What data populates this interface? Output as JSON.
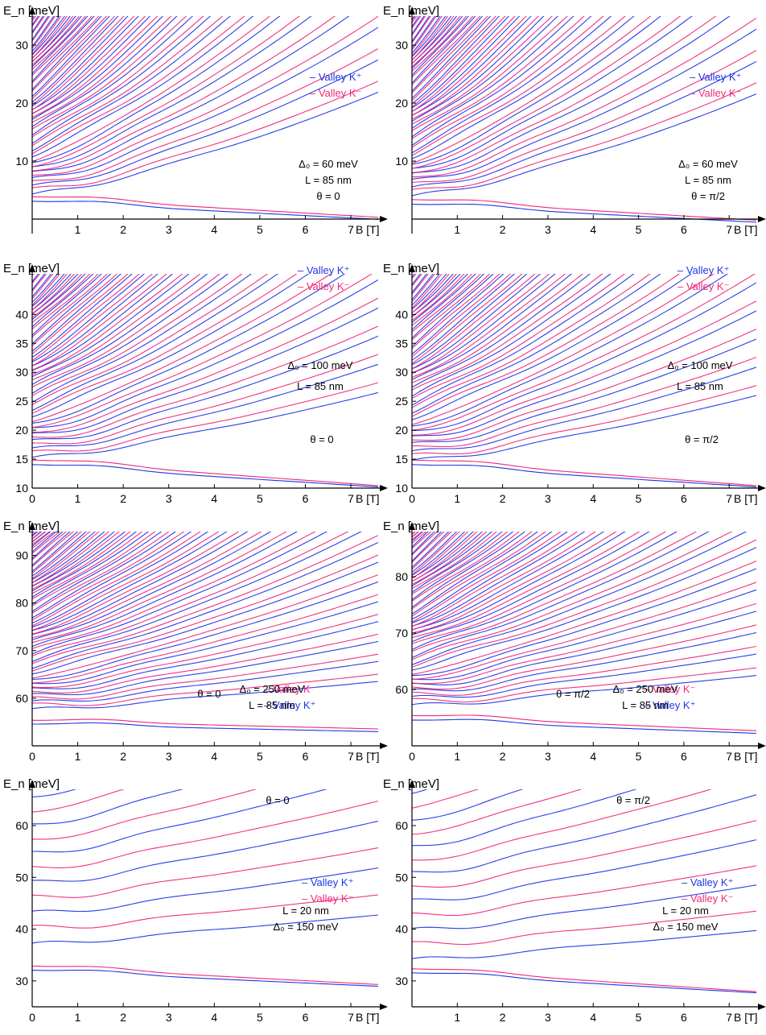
{
  "colors": {
    "kplus": "#1f35e8",
    "kminus": "#f0287a",
    "axis": "#000000"
  },
  "chart_data": [
    {
      "type": "line",
      "ylabel": "E_n [meV]",
      "xlabel": "B [T]",
      "xlim": [
        0,
        7.6
      ],
      "ylim": [
        -2.5,
        35
      ],
      "xticks": [
        1,
        2,
        3,
        4,
        5,
        6,
        7
      ],
      "yticks": [
        10,
        20,
        30
      ],
      "show_x0": false,
      "xaxis_at": 0,
      "legend_pos": "right",
      "legend": [
        "Valley K⁺",
        "Valley K⁻"
      ],
      "annotations": [
        "Δ₀ = 60 meV",
        "L = 85 nm",
        "θ = 0"
      ],
      "params": {
        "fan_top": 35,
        "ground_base": 3.0,
        "ground_slope": -0.4,
        "base_min": 4.5,
        "spacing": 1.15,
        "slope0": 1.3,
        "slope_inc": 0.95,
        "curv": 0.1,
        "n": 40
      },
      "series": [
        {
          "name": "Valley K⁺"
        },
        {
          "name": "Valley K⁻"
        }
      ]
    },
    {
      "type": "line",
      "ylabel": "E_n [meV]",
      "xlabel": "B [T]",
      "xlim": [
        0,
        7.6
      ],
      "ylim": [
        -2.5,
        35
      ],
      "xticks": [
        1,
        2,
        3,
        4,
        5,
        6,
        7
      ],
      "yticks": [
        10,
        20,
        30
      ],
      "show_x0": false,
      "xaxis_at": 0,
      "legend_pos": "right",
      "legend": [
        "Valley K⁺",
        "Valley K⁻"
      ],
      "annotations": [
        "Δ₀ = 60 meV",
        "L = 85 nm",
        "θ = π/2"
      ],
      "params": {
        "fan_top": 35,
        "ground_base": 2.5,
        "ground_slope": -0.4,
        "base_min": 4.2,
        "spacing": 1.15,
        "slope0": 1.3,
        "slope_inc": 0.95,
        "curv": 0.1,
        "n": 40
      },
      "series": [
        {
          "name": "Valley K⁺"
        },
        {
          "name": "Valley K⁻"
        }
      ]
    },
    {
      "type": "line",
      "ylabel": "E_n [meV]",
      "xlabel": "B [T]",
      "xlim": [
        0,
        7.6
      ],
      "ylim": [
        10,
        47
      ],
      "xticks": [
        0,
        1,
        2,
        3,
        4,
        5,
        6,
        7
      ],
      "yticks": [
        10,
        15,
        20,
        25,
        30,
        35,
        40
      ],
      "show_x0": true,
      "xaxis_at": 10,
      "legend_pos": "top-right",
      "legend": [
        "Valley K⁺",
        "Valley K⁻"
      ],
      "annotations": [
        "Δ₀ = 100 meV",
        "L = 85 nm",
        "θ = 0"
      ],
      "params": {
        "fan_top": 47,
        "ground_base": 14.0,
        "ground_slope": -0.5,
        "base_min": 15.5,
        "spacing": 1.25,
        "slope0": 0.9,
        "slope_inc": 0.85,
        "curv": 0.08,
        "n": 36
      },
      "series": [
        {
          "name": "Valley K⁺"
        },
        {
          "name": "Valley K⁻"
        }
      ]
    },
    {
      "type": "line",
      "ylabel": "E_n [meV]",
      "xlabel": "B [T]",
      "xlim": [
        0,
        7.6
      ],
      "ylim": [
        10,
        47
      ],
      "xticks": [
        0,
        1,
        2,
        3,
        4,
        5,
        6,
        7
      ],
      "yticks": [
        10,
        15,
        20,
        25,
        30,
        35,
        40
      ],
      "show_x0": true,
      "xaxis_at": 10,
      "legend_pos": "top-right",
      "legend": [
        "Valley K⁺",
        "Valley K⁻"
      ],
      "annotations": [
        "Δ₀ = 100 meV",
        "L = 85 nm",
        "θ = π/2"
      ],
      "params": {
        "fan_top": 47,
        "ground_base": 14.0,
        "ground_slope": -0.5,
        "base_min": 15.0,
        "spacing": 1.25,
        "slope0": 0.9,
        "slope_inc": 0.85,
        "curv": 0.08,
        "n": 36
      },
      "series": [
        {
          "name": "Valley K⁺"
        },
        {
          "name": "Valley K⁻"
        }
      ]
    },
    {
      "type": "line",
      "ylabel": "E_n [meV]",
      "xlabel": "B [T]",
      "xlim": [
        0,
        7.6
      ],
      "ylim": [
        50,
        95
      ],
      "xticks": [
        0,
        1,
        2,
        3,
        4,
        5,
        6,
        7
      ],
      "yticks": [
        60,
        70,
        80,
        90
      ],
      "show_x0": true,
      "xaxis_at": 50,
      "legend_pos": "center-right",
      "legend": [
        "Valley K⁻",
        "Valley K⁺"
      ],
      "annotations": [
        "θ = 0",
        "Δ₀ = 250 meV",
        "L = 85 nm"
      ],
      "params": {
        "fan_top": 95,
        "ground_base": 54.5,
        "ground_slope": -0.2,
        "base_min": 58.0,
        "spacing": 1.3,
        "slope0": 0.5,
        "slope_inc": 0.75,
        "curv": 0.06,
        "n": 45
      },
      "series": [
        {
          "name": "Valley K⁻"
        },
        {
          "name": "Valley K⁺"
        }
      ]
    },
    {
      "type": "line",
      "ylabel": "E_n [meV]",
      "xlabel": "B [T]",
      "xlim": [
        0,
        7.6
      ],
      "ylim": [
        50,
        88
      ],
      "xticks": [
        0,
        1,
        2,
        3,
        4,
        5,
        6,
        7
      ],
      "yticks": [
        60,
        70,
        80
      ],
      "show_x0": true,
      "xaxis_at": 50,
      "legend_pos": "center-right",
      "legend": [
        "Valley K⁻",
        "Valley K⁺"
      ],
      "annotations": [
        "θ = π/2",
        "Δ₀ = 250 meV",
        "L = 85 nm"
      ],
      "params": {
        "fan_top": 88,
        "ground_base": 54.5,
        "ground_slope": -0.3,
        "base_min": 57.5,
        "spacing": 1.1,
        "slope0": 0.45,
        "slope_inc": 0.7,
        "curv": 0.06,
        "n": 45
      },
      "series": [
        {
          "name": "Valley K⁻"
        },
        {
          "name": "Valley K⁺"
        }
      ]
    },
    {
      "type": "line",
      "ylabel": "E_n [meV]",
      "xlabel": "B [T]",
      "xlim": [
        0,
        7.6
      ],
      "ylim": [
        25,
        67
      ],
      "xticks": [
        0,
        1,
        2,
        3,
        4,
        5,
        6,
        7
      ],
      "yticks": [
        30,
        40,
        50,
        60
      ],
      "show_x0": true,
      "xaxis_at": 25,
      "legend_pos": "right",
      "legend": [
        "Valley K⁺",
        "Valley K⁻"
      ],
      "annotations": [
        "θ = 0",
        "L = 20 nm",
        "Δ₀ = 150 meV"
      ],
      "params": {
        "fan_top": 67,
        "ground_base": 32.0,
        "ground_slope": -0.4,
        "base_min": 37.5,
        "spacing": 5.8,
        "slope0": 0.5,
        "slope_inc": 0.9,
        "curv": 0.05,
        "n": 12
      },
      "series": [
        {
          "name": "Valley K⁺"
        },
        {
          "name": "Valley K⁻"
        }
      ]
    },
    {
      "type": "line",
      "ylabel": "E_n [meV]",
      "xlabel": "B [T]",
      "xlim": [
        0,
        7.6
      ],
      "ylim": [
        25,
        67
      ],
      "xticks": [
        1,
        2,
        3,
        4,
        5,
        6,
        7
      ],
      "yticks": [
        30,
        40,
        50,
        60
      ],
      "show_x0": false,
      "xaxis_at": 25,
      "legend_pos": "right",
      "legend": [
        "Valley K⁺",
        "Valley K⁻"
      ],
      "annotations": [
        "θ = π/2",
        "L = 20 nm",
        "Δ₀ = 150 meV"
      ],
      "params": {
        "fan_top": 67,
        "ground_base": 31.5,
        "ground_slope": -0.5,
        "base_min": 34.5,
        "spacing": 5.5,
        "slope0": 0.5,
        "slope_inc": 0.9,
        "curv": 0.05,
        "n": 12
      },
      "series": [
        {
          "name": "Valley K⁺"
        },
        {
          "name": "Valley K⁻"
        }
      ]
    }
  ]
}
